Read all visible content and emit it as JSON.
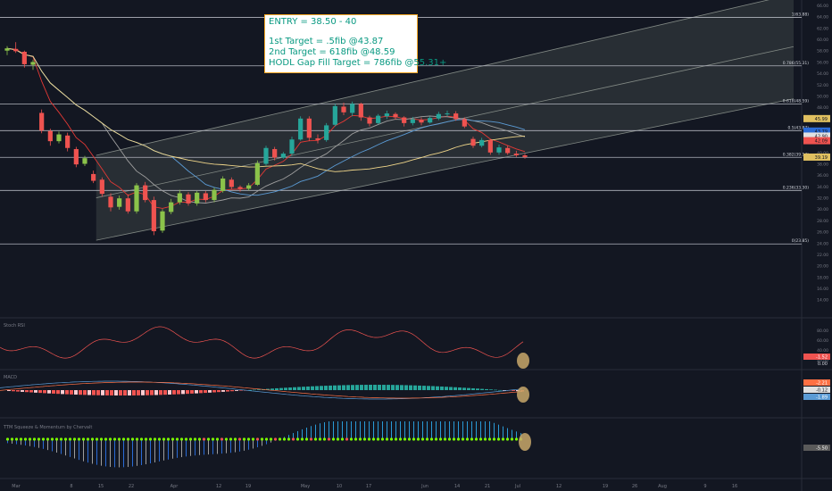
{
  "colors": {
    "background": "#131722",
    "pane_divider": "#2a2e39",
    "up_candle": "#26a69a",
    "up_candle_light": "#8bc34a",
    "down_candle": "#ef5350",
    "fib_line": "#b2b5be",
    "channel_fill": "rgba(120,130,120,0.22)",
    "channel_line": "#9aa29a",
    "ma_fast": "#e53935",
    "ma_mid": "#5b9bd5",
    "ma_slow": "#f0d68a",
    "ma_grey": "#9e9e9e",
    "annotation_text": "#089981",
    "annotation_border": "#f5a623",
    "highlight_circle": "#c9a86a",
    "axis_text": "#787b86"
  },
  "annotation": {
    "entry": "ENTRY = 38.50 - 40",
    "target1": "1st Target = .5fib @43.87",
    "target2": "2nd Target = 618fib @48.59",
    "target3": "HODL Gap Fill Target = 786fib @55.31+"
  },
  "panes": {
    "stoch_title": "Stoch RSI",
    "macd_title": "MACD",
    "squeeze_title": "TTM Squeeze & Momentum by Chervalt",
    "stoch_labels": [
      "-1.52",
      "0.00"
    ],
    "macd_labels": [
      "-2.21",
      "-0.12",
      "-1.89"
    ],
    "squeeze_label": "-5.50",
    "stoch_y_labels": [
      "80.00",
      "60.00",
      "40.00",
      "20.00"
    ]
  },
  "chart_data": {
    "type": "candlestick",
    "title": "",
    "xlabel": "",
    "ylabel": "",
    "ylim": [
      13.0,
      66.0
    ],
    "x_ticks": [
      "Mar",
      "8",
      "15",
      "22",
      "Apr",
      "12",
      "19",
      "May",
      "10",
      "17",
      "Jun",
      "14",
      "21",
      "Jul",
      "12",
      "19",
      "26",
      "Aug",
      "9",
      "16"
    ],
    "y_ticks": [
      66.0,
      64.0,
      62.0,
      60.0,
      58.0,
      56.0,
      54.0,
      52.0,
      50.0,
      48.0,
      46.0,
      44.0,
      42.0,
      40.0,
      38.0,
      36.0,
      34.0,
      32.0,
      30.0,
      28.0,
      26.0,
      24.0,
      22.0,
      20.0,
      18.0,
      16.0,
      14.0
    ],
    "fib_levels": [
      {
        "label": "1(63.88)",
        "value": 63.88
      },
      {
        "label": "0.786(55.31)",
        "value": 55.31
      },
      {
        "label": "0.618(48.59)",
        "value": 48.59
      },
      {
        "label": "0.5(43.87)",
        "value": 43.87
      },
      {
        "label": "0.382(39.14)",
        "value": 39.14
      },
      {
        "label": "0.236(33.30)",
        "value": 33.3
      },
      {
        "label": "0(23.85)",
        "value": 23.85
      }
    ],
    "price_labels": [
      {
        "text": "45.99",
        "value": 45.99,
        "color": "#e0c060"
      },
      {
        "text": "43.79",
        "value": 43.79,
        "color": "#2a6bd6"
      },
      {
        "text": "42.90",
        "value": 42.9,
        "color": "#e0e0e0"
      },
      {
        "text": "42.09",
        "value": 42.09,
        "color": "#ef5350"
      },
      {
        "text": "39.19",
        "value": 39.19,
        "color": "#e0c060"
      }
    ],
    "channel": {
      "lower": [
        [
          0.12,
          24.5
        ],
        [
          0.99,
          49.5
        ]
      ],
      "upper": [
        [
          0.12,
          39.5
        ],
        [
          0.99,
          68.0
        ]
      ],
      "mid": [
        [
          0.12,
          32.0
        ],
        [
          0.99,
          58.7
        ]
      ]
    },
    "candles": [
      [
        58.0,
        58.8,
        57.2,
        58.4
      ],
      [
        58.3,
        59.5,
        57.6,
        57.9
      ],
      [
        57.8,
        58.0,
        55.0,
        55.6
      ],
      [
        55.5,
        56.4,
        54.6,
        56.0
      ],
      [
        47.0,
        47.6,
        43.4,
        43.9
      ],
      [
        43.8,
        44.2,
        41.2,
        42.0
      ],
      [
        42.0,
        43.7,
        41.6,
        43.2
      ],
      [
        43.0,
        43.5,
        40.2,
        40.8
      ],
      [
        40.6,
        41.0,
        37.4,
        37.9
      ],
      [
        38.0,
        39.4,
        37.6,
        39.0
      ],
      [
        36.2,
        36.8,
        34.6,
        35.0
      ],
      [
        35.2,
        35.6,
        32.2,
        32.7
      ],
      [
        32.2,
        32.8,
        29.6,
        30.3
      ],
      [
        30.4,
        32.4,
        29.9,
        31.9
      ],
      [
        31.9,
        32.6,
        29.2,
        29.6
      ],
      [
        29.6,
        34.6,
        29.2,
        34.2
      ],
      [
        34.2,
        34.8,
        31.2,
        31.6
      ],
      [
        31.6,
        32.2,
        25.4,
        26.1
      ],
      [
        26.2,
        30.0,
        25.8,
        29.6
      ],
      [
        29.5,
        31.8,
        29.1,
        31.2
      ],
      [
        31.2,
        33.4,
        30.8,
        32.8
      ],
      [
        32.6,
        33.0,
        30.6,
        31.0
      ],
      [
        31.0,
        33.2,
        30.6,
        32.9
      ],
      [
        32.8,
        33.2,
        31.2,
        31.6
      ],
      [
        31.6,
        33.8,
        31.2,
        33.4
      ],
      [
        33.2,
        35.8,
        32.9,
        35.4
      ],
      [
        35.2,
        35.6,
        33.5,
        33.9
      ],
      [
        33.9,
        34.2,
        33.1,
        33.6
      ],
      [
        33.6,
        34.6,
        33.3,
        34.2
      ],
      [
        34.3,
        38.6,
        34.1,
        38.1
      ],
      [
        38.0,
        41.2,
        37.7,
        40.8
      ],
      [
        40.6,
        41.0,
        38.6,
        39.1
      ],
      [
        39.1,
        40.1,
        38.9,
        39.8
      ],
      [
        39.8,
        42.8,
        39.4,
        42.3
      ],
      [
        42.3,
        46.4,
        42.1,
        46.0
      ],
      [
        46.0,
        46.4,
        42.0,
        42.6
      ],
      [
        42.5,
        43.2,
        41.6,
        42.2
      ],
      [
        42.2,
        45.2,
        41.9,
        44.8
      ],
      [
        44.9,
        48.6,
        44.6,
        48.2
      ],
      [
        48.1,
        48.8,
        46.6,
        47.1
      ],
      [
        47.0,
        49.0,
        46.4,
        48.6
      ],
      [
        48.6,
        48.8,
        45.6,
        46.2
      ],
      [
        46.2,
        46.5,
        44.6,
        45.1
      ],
      [
        45.2,
        46.8,
        45.0,
        46.5
      ],
      [
        46.4,
        47.4,
        45.9,
        46.9
      ],
      [
        46.8,
        47.1,
        45.8,
        46.2
      ],
      [
        46.2,
        46.4,
        44.6,
        45.2
      ],
      [
        45.2,
        46.3,
        44.8,
        45.9
      ],
      [
        45.8,
        46.2,
        44.8,
        45.3
      ],
      [
        45.3,
        46.4,
        45.1,
        46.1
      ],
      [
        46.0,
        47.2,
        45.7,
        46.8
      ],
      [
        46.8,
        47.4,
        46.3,
        46.9
      ],
      [
        46.9,
        47.3,
        45.6,
        45.9
      ],
      [
        45.9,
        46.2,
        44.3,
        44.6
      ],
      [
        42.4,
        42.8,
        40.8,
        41.2
      ],
      [
        41.2,
        42.6,
        40.9,
        42.2
      ],
      [
        42.2,
        42.4,
        39.6,
        40.0
      ],
      [
        40.0,
        41.4,
        39.6,
        40.9
      ],
      [
        40.8,
        41.2,
        39.6,
        39.9
      ],
      [
        39.8,
        40.3,
        39.2,
        39.5
      ],
      [
        39.5,
        39.8,
        38.9,
        39.2
      ]
    ]
  }
}
